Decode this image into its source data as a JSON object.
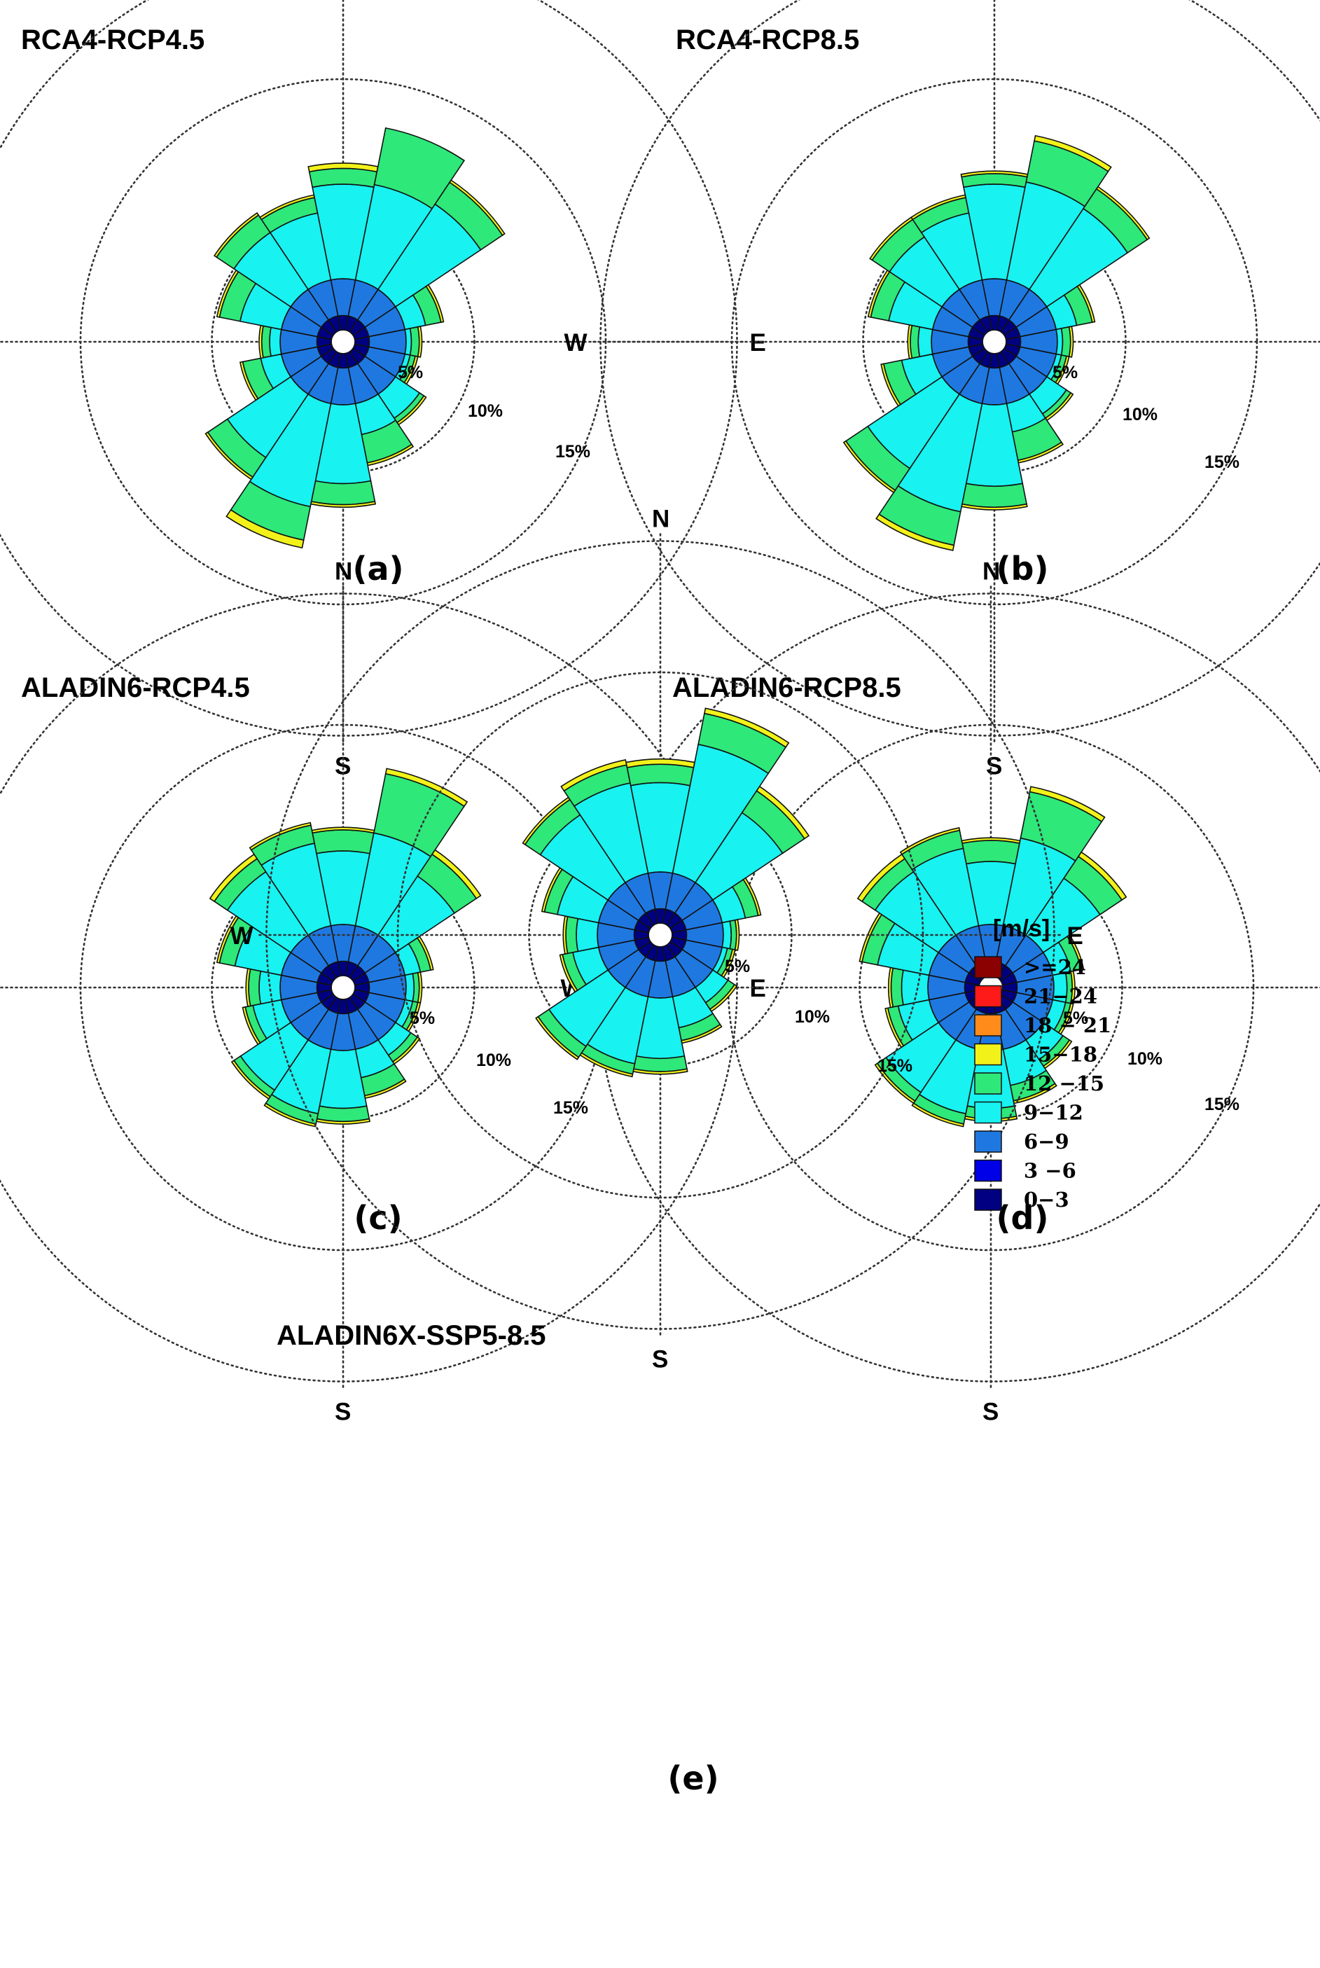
{
  "directions": {
    "n": "N",
    "e": "E",
    "s": "S",
    "w": "W"
  },
  "ring_labels": [
    "5%",
    "10%",
    "15%"
  ],
  "ring_percents": [
    5,
    10,
    15
  ],
  "bins": [
    {
      "label": "0−3",
      "color": "#000080"
    },
    {
      "label": "3 −6",
      "color": "#0000e6"
    },
    {
      "label": "6−9",
      "color": "#1f78e0"
    },
    {
      "label": "9−12",
      "color": "#18f2f0"
    },
    {
      "label": "12 −15",
      "color": "#2ee87a"
    },
    {
      "label": "15−18",
      "color": "#f2f21a"
    },
    {
      "label": "18 − 21",
      "color": "#ff8c1a"
    },
    {
      "label": "21−24",
      "color": "#ff1a1a"
    },
    {
      "label": ">=24",
      "color": "#8b0000"
    }
  ],
  "legend": {
    "title": "[m/s]"
  },
  "chart_data": [
    {
      "type": "windrose",
      "title": "RCA4-RCP4.5",
      "panel_label": "(a)",
      "direction_count": 16,
      "radial_unit": "% frequency",
      "rings": [
        5,
        10,
        15
      ],
      "sectors": [
        [
          1.0,
          1.0,
          2.4,
          6.0,
          6.6,
          6.8,
          6.8,
          6.8,
          6.8
        ],
        [
          1.0,
          1.0,
          2.4,
          6.1,
          8.3,
          8.3,
          8.3,
          8.3,
          8.3
        ],
        [
          1.0,
          1.0,
          2.4,
          6.3,
          7.3,
          7.4,
          7.4,
          7.4,
          7.4
        ],
        [
          1.0,
          1.0,
          2.4,
          3.2,
          3.8,
          3.9,
          3.9,
          3.9,
          3.9
        ],
        [
          1.0,
          1.0,
          2.4,
          2.6,
          2.9,
          3.0,
          3.0,
          3.0,
          3.0
        ],
        [
          1.0,
          1.0,
          2.4,
          2.6,
          2.8,
          2.9,
          2.9,
          2.9,
          2.9
        ],
        [
          1.0,
          1.0,
          2.4,
          3.5,
          3.7,
          3.8,
          3.8,
          3.8,
          3.8
        ],
        [
          1.0,
          1.0,
          2.4,
          3.6,
          4.7,
          4.8,
          4.8,
          4.8,
          4.8
        ],
        [
          1.0,
          1.0,
          2.4,
          5.4,
          6.2,
          6.3,
          6.3,
          6.3,
          6.3
        ],
        [
          1.0,
          1.0,
          2.4,
          6.4,
          7.7,
          8.0,
          8.0,
          8.0,
          8.0
        ],
        [
          1.0,
          1.0,
          2.4,
          5.3,
          6.2,
          6.3,
          6.3,
          6.3,
          6.3
        ],
        [
          1.0,
          1.0,
          2.4,
          3.2,
          3.9,
          4.0,
          4.0,
          4.0,
          4.0
        ],
        [
          1.0,
          1.0,
          2.4,
          2.8,
          3.1,
          3.2,
          3.2,
          3.2,
          3.2
        ],
        [
          1.0,
          1.0,
          2.4,
          4.0,
          4.8,
          4.9,
          4.9,
          4.9,
          4.9
        ],
        [
          1.0,
          1.0,
          2.4,
          5.0,
          5.8,
          5.9,
          5.9,
          5.9,
          5.9
        ],
        [
          1.0,
          1.0,
          2.4,
          5.0,
          5.6,
          5.7,
          5.7,
          5.7,
          5.7
        ]
      ]
    },
    {
      "type": "windrose",
      "title": "RCA4-RCP8.5",
      "panel_label": "(b)",
      "direction_count": 16,
      "radial_unit": "% frequency",
      "rings": [
        5,
        10,
        15
      ],
      "sectors": [
        [
          1.0,
          1.0,
          2.4,
          6.0,
          6.4,
          6.5,
          6.5,
          6.5,
          6.5
        ],
        [
          1.0,
          1.0,
          2.4,
          6.2,
          7.8,
          8.0,
          8.0,
          8.0,
          8.0
        ],
        [
          1.0,
          1.0,
          2.4,
          6.1,
          7.0,
          7.1,
          7.1,
          7.1,
          7.1
        ],
        [
          1.0,
          1.0,
          2.4,
          3.2,
          3.8,
          3.9,
          3.9,
          3.9,
          3.9
        ],
        [
          1.0,
          1.0,
          2.4,
          2.6,
          2.9,
          3.0,
          3.0,
          3.0,
          3.0
        ],
        [
          1.0,
          1.0,
          2.4,
          2.6,
          2.8,
          2.9,
          2.9,
          2.9,
          2.9
        ],
        [
          1.0,
          1.0,
          2.4,
          3.3,
          3.5,
          3.6,
          3.6,
          3.6,
          3.6
        ],
        [
          1.0,
          1.0,
          2.4,
          3.5,
          4.6,
          4.7,
          4.7,
          4.7,
          4.7
        ],
        [
          1.0,
          1.0,
          2.4,
          5.5,
          6.3,
          6.4,
          6.4,
          6.4,
          6.4
        ],
        [
          1.0,
          1.0,
          2.4,
          6.6,
          7.9,
          8.1,
          8.1,
          8.1,
          8.1
        ],
        [
          1.0,
          1.0,
          2.4,
          5.8,
          6.8,
          6.9,
          6.9,
          6.9,
          6.9
        ],
        [
          1.0,
          1.0,
          2.4,
          3.6,
          4.3,
          4.4,
          4.4,
          4.4,
          4.4
        ],
        [
          1.0,
          1.0,
          2.4,
          2.9,
          3.2,
          3.3,
          3.3,
          3.3,
          3.3
        ],
        [
          1.0,
          1.0,
          2.4,
          4.1,
          4.8,
          4.9,
          4.9,
          4.9,
          4.9
        ],
        [
          1.0,
          1.0,
          2.4,
          4.8,
          5.6,
          5.7,
          5.7,
          5.7,
          5.7
        ],
        [
          1.0,
          1.0,
          2.4,
          5.0,
          5.6,
          5.7,
          5.7,
          5.7,
          5.7
        ]
      ]
    },
    {
      "type": "windrose",
      "title": "ALADIN6-RCP4.5",
      "panel_label": "(c)",
      "direction_count": 16,
      "radial_unit": "% frequency",
      "rings": [
        5,
        10,
        15
      ],
      "sectors": [
        [
          1.0,
          1.0,
          2.4,
          5.2,
          6.0,
          6.1,
          6.1,
          6.1,
          6.1
        ],
        [
          1.0,
          1.0,
          2.4,
          6.0,
          8.3,
          8.5,
          8.5,
          8.5,
          8.5
        ],
        [
          1.0,
          1.0,
          2.4,
          5.1,
          6.1,
          6.3,
          6.3,
          6.3,
          6.3
        ],
        [
          1.0,
          1.0,
          2.4,
          3.0,
          3.4,
          3.5,
          3.5,
          3.5,
          3.5
        ],
        [
          1.0,
          1.0,
          2.4,
          2.7,
          2.9,
          3.0,
          3.0,
          3.0,
          3.0
        ],
        [
          1.0,
          1.0,
          2.4,
          2.7,
          2.9,
          3.0,
          3.0,
          3.0,
          3.0
        ],
        [
          1.0,
          1.0,
          2.4,
          3.1,
          3.4,
          3.5,
          3.5,
          3.5,
          3.5
        ],
        [
          1.0,
          1.0,
          2.4,
          3.5,
          4.2,
          4.3,
          4.3,
          4.3,
          4.3
        ],
        [
          1.0,
          1.0,
          2.4,
          4.6,
          5.1,
          5.2,
          5.2,
          5.2,
          5.2
        ],
        [
          1.0,
          1.0,
          2.4,
          4.9,
          5.3,
          5.4,
          5.4,
          5.4,
          5.4
        ],
        [
          1.0,
          1.0,
          2.4,
          4.7,
          5.0,
          5.1,
          5.1,
          5.1,
          5.1
        ],
        [
          1.0,
          1.0,
          2.4,
          3.5,
          3.8,
          3.9,
          3.9,
          3.9,
          3.9
        ],
        [
          1.0,
          1.0,
          2.4,
          3.2,
          3.6,
          3.7,
          3.7,
          3.7,
          3.7
        ],
        [
          1.0,
          1.0,
          2.4,
          4.2,
          4.8,
          4.9,
          4.9,
          4.9,
          4.9
        ],
        [
          1.0,
          1.0,
          2.4,
          5.3,
          5.9,
          6.1,
          6.1,
          6.1,
          6.1
        ],
        [
          1.0,
          1.0,
          2.4,
          5.6,
          6.3,
          6.4,
          6.4,
          6.4,
          6.4
        ]
      ]
    },
    {
      "type": "windrose",
      "title": "ALADIN6-RCP8.5",
      "panel_label": "(d)",
      "direction_count": 16,
      "radial_unit": "% frequency",
      "rings": [
        5,
        10,
        15
      ],
      "sectors": [
        [
          1.0,
          1.0,
          2.4,
          4.8,
          5.6,
          5.7,
          5.7,
          5.7,
          5.7
        ],
        [
          1.0,
          1.0,
          2.4,
          5.8,
          7.6,
          7.8,
          7.8,
          7.8,
          7.8
        ],
        [
          1.0,
          1.0,
          2.4,
          5.0,
          6.0,
          6.2,
          6.2,
          6.2,
          6.2
        ],
        [
          1.0,
          1.0,
          2.4,
          3.1,
          3.5,
          3.6,
          3.6,
          3.6,
          3.6
        ],
        [
          1.0,
          1.0,
          2.4,
          2.9,
          3.1,
          3.2,
          3.2,
          3.2,
          3.2
        ],
        [
          1.0,
          1.0,
          2.4,
          2.9,
          3.1,
          3.2,
          3.2,
          3.2,
          3.2
        ],
        [
          1.0,
          1.0,
          2.4,
          3.3,
          3.6,
          3.7,
          3.7,
          3.7,
          3.7
        ],
        [
          1.0,
          1.0,
          2.4,
          3.8,
          4.4,
          4.5,
          4.5,
          4.5,
          4.5
        ],
        [
          1.0,
          1.0,
          2.4,
          4.6,
          5.0,
          5.1,
          5.1,
          5.1,
          5.1
        ],
        [
          1.0,
          1.0,
          2.4,
          4.9,
          5.3,
          5.4,
          5.4,
          5.4,
          5.4
        ],
        [
          1.0,
          1.0,
          2.4,
          4.8,
          5.2,
          5.3,
          5.3,
          5.3,
          5.3
        ],
        [
          1.0,
          1.0,
          2.4,
          3.6,
          4.0,
          4.1,
          4.1,
          4.1,
          4.1
        ],
        [
          1.0,
          1.0,
          2.4,
          3.4,
          3.8,
          3.9,
          3.9,
          3.9,
          3.9
        ],
        [
          1.0,
          1.0,
          2.4,
          4.4,
          5.0,
          5.1,
          5.1,
          5.1,
          5.1
        ],
        [
          1.0,
          1.0,
          2.4,
          5.3,
          5.9,
          6.1,
          6.1,
          6.1,
          6.1
        ],
        [
          1.0,
          1.0,
          2.4,
          5.4,
          6.1,
          6.2,
          6.2,
          6.2,
          6.2
        ]
      ]
    },
    {
      "type": "windrose",
      "title": "ALADIN6X-SSP5-8.5",
      "panel_label": "(e)",
      "direction_count": 16,
      "radial_unit": "% frequency",
      "rings": [
        5,
        10,
        15
      ],
      "sectors": [
        [
          1.0,
          1.0,
          2.4,
          5.8,
          6.5,
          6.7,
          6.7,
          6.7,
          6.7
        ],
        [
          1.0,
          1.0,
          2.4,
          7.4,
          8.6,
          8.8,
          8.8,
          8.8,
          8.8
        ],
        [
          1.0,
          1.0,
          2.4,
          5.6,
          6.6,
          6.8,
          6.8,
          6.8,
          6.8
        ],
        [
          1.0,
          1.0,
          2.4,
          3.3,
          3.8,
          3.9,
          3.9,
          3.9,
          3.9
        ],
        [
          1.0,
          1.0,
          2.4,
          2.7,
          2.9,
          3.0,
          3.0,
          3.0,
          3.0
        ],
        [
          1.0,
          1.0,
          2.4,
          2.6,
          2.8,
          2.9,
          2.9,
          2.9,
          2.9
        ],
        [
          1.0,
          1.0,
          2.4,
          3.1,
          3.4,
          3.5,
          3.5,
          3.5,
          3.5
        ],
        [
          1.0,
          1.0,
          2.4,
          3.6,
          4.1,
          4.2,
          4.2,
          4.2,
          4.2
        ],
        [
          1.0,
          1.0,
          2.4,
          4.7,
          5.2,
          5.3,
          5.3,
          5.3,
          5.3
        ],
        [
          1.0,
          1.0,
          2.4,
          5.0,
          5.4,
          5.5,
          5.5,
          5.5,
          5.5
        ],
        [
          1.0,
          1.0,
          2.4,
          5.1,
          5.6,
          5.7,
          5.7,
          5.7,
          5.7
        ],
        [
          1.0,
          1.0,
          2.4,
          3.4,
          3.8,
          3.9,
          3.9,
          3.9,
          3.9
        ],
        [
          1.0,
          1.0,
          2.4,
          3.2,
          3.6,
          3.7,
          3.7,
          3.7,
          3.7
        ],
        [
          1.0,
          1.0,
          2.4,
          4.0,
          4.5,
          4.6,
          4.6,
          4.6,
          4.6
        ],
        [
          1.0,
          1.0,
          2.4,
          5.5,
          6.2,
          6.3,
          6.3,
          6.3,
          6.3
        ],
        [
          1.0,
          1.0,
          2.4,
          5.9,
          6.6,
          6.8,
          6.8,
          6.8,
          6.8
        ]
      ]
    }
  ]
}
